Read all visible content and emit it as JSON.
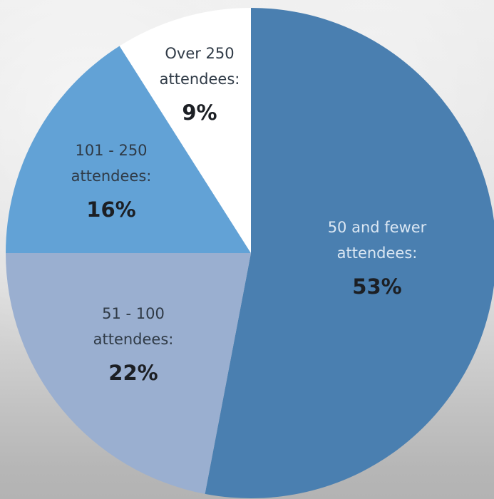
{
  "chart_data": {
    "type": "pie",
    "title": "",
    "slices": [
      {
        "label_line1": "50 and fewer",
        "label_line2": "attendees:",
        "value": 53,
        "value_label": "53%",
        "color": "#4a7fb0",
        "text_color": "#dbe7f3"
      },
      {
        "label_line1": "51 - 100",
        "label_line2": "attendees:",
        "value": 22,
        "value_label": "22%",
        "color": "#9aafd0",
        "text_color": "#2f3a46"
      },
      {
        "label_line1": "101 - 250",
        "label_line2": "attendees:",
        "value": 16,
        "value_label": "16%",
        "color": "#62a2d6",
        "text_color": "#2f3a46"
      },
      {
        "label_line1": "Over 250",
        "label_line2": "attendees:",
        "value": 9,
        "value_label": "9%",
        "color": "#ffffff",
        "text_color": "#2f3a46"
      }
    ],
    "legend": "none",
    "start_angle_deg": 0,
    "direction": "clockwise"
  }
}
